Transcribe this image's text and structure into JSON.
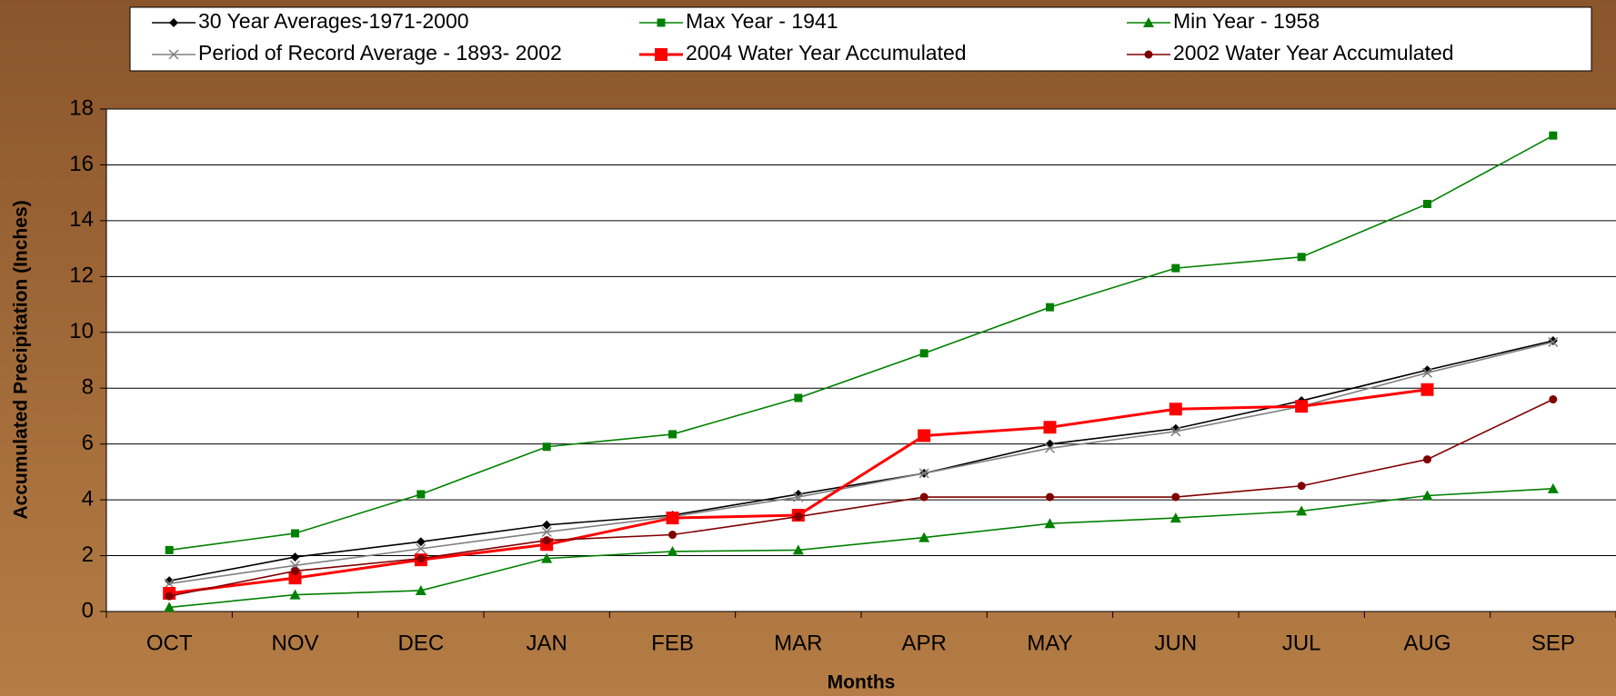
{
  "chart_data": {
    "type": "line",
    "x_label": "Months",
    "y_label": "Accumulated Precipitation (Inches)",
    "categories": [
      "OCT",
      "NOV",
      "DEC",
      "JAN",
      "FEB",
      "MAR",
      "APR",
      "MAY",
      "JUN",
      "JUL",
      "AUG",
      "SEP"
    ],
    "ylim": [
      0,
      18
    ],
    "yticks": [
      0,
      2,
      4,
      6,
      8,
      10,
      12,
      14,
      16,
      18
    ],
    "grid": true,
    "series": [
      {
        "name": "30 Year Averages-1971-2000",
        "color": "#000000",
        "marker": "diamond",
        "values": [
          1.1,
          1.95,
          2.5,
          3.1,
          3.45,
          4.2,
          4.95,
          6.0,
          6.55,
          7.55,
          8.65,
          9.7
        ]
      },
      {
        "name": "Max Year - 1941",
        "color": "#008000",
        "marker": "square",
        "values": [
          2.2,
          2.8,
          4.2,
          5.9,
          6.35,
          7.65,
          9.25,
          10.9,
          12.3,
          12.7,
          14.6,
          17.05
        ]
      },
      {
        "name": "Min Year - 1958",
        "color": "#008000",
        "marker": "triangle",
        "values": [
          0.15,
          0.6,
          0.75,
          1.9,
          2.15,
          2.2,
          2.65,
          3.15,
          3.35,
          3.6,
          4.15,
          4.4
        ]
      },
      {
        "name": "Period of Record Average - 1893- 2002",
        "color": "#808080",
        "marker": "x",
        "values": [
          1.0,
          1.65,
          2.25,
          2.85,
          3.4,
          4.1,
          4.95,
          5.85,
          6.45,
          7.35,
          8.55,
          9.65
        ]
      },
      {
        "name": "2004 Water Year Accumulated",
        "color": "#ff0000",
        "marker": "bigsquare",
        "values": [
          0.65,
          1.2,
          1.85,
          2.4,
          3.35,
          3.45,
          6.3,
          6.6,
          7.25,
          7.35,
          7.95,
          null
        ]
      },
      {
        "name": "2002 Water Year Accumulated",
        "color": "#800000",
        "marker": "circle",
        "values": [
          0.55,
          1.45,
          1.9,
          2.55,
          2.75,
          3.4,
          4.1,
          4.1,
          4.1,
          4.5,
          5.45,
          7.6
        ]
      }
    ]
  }
}
